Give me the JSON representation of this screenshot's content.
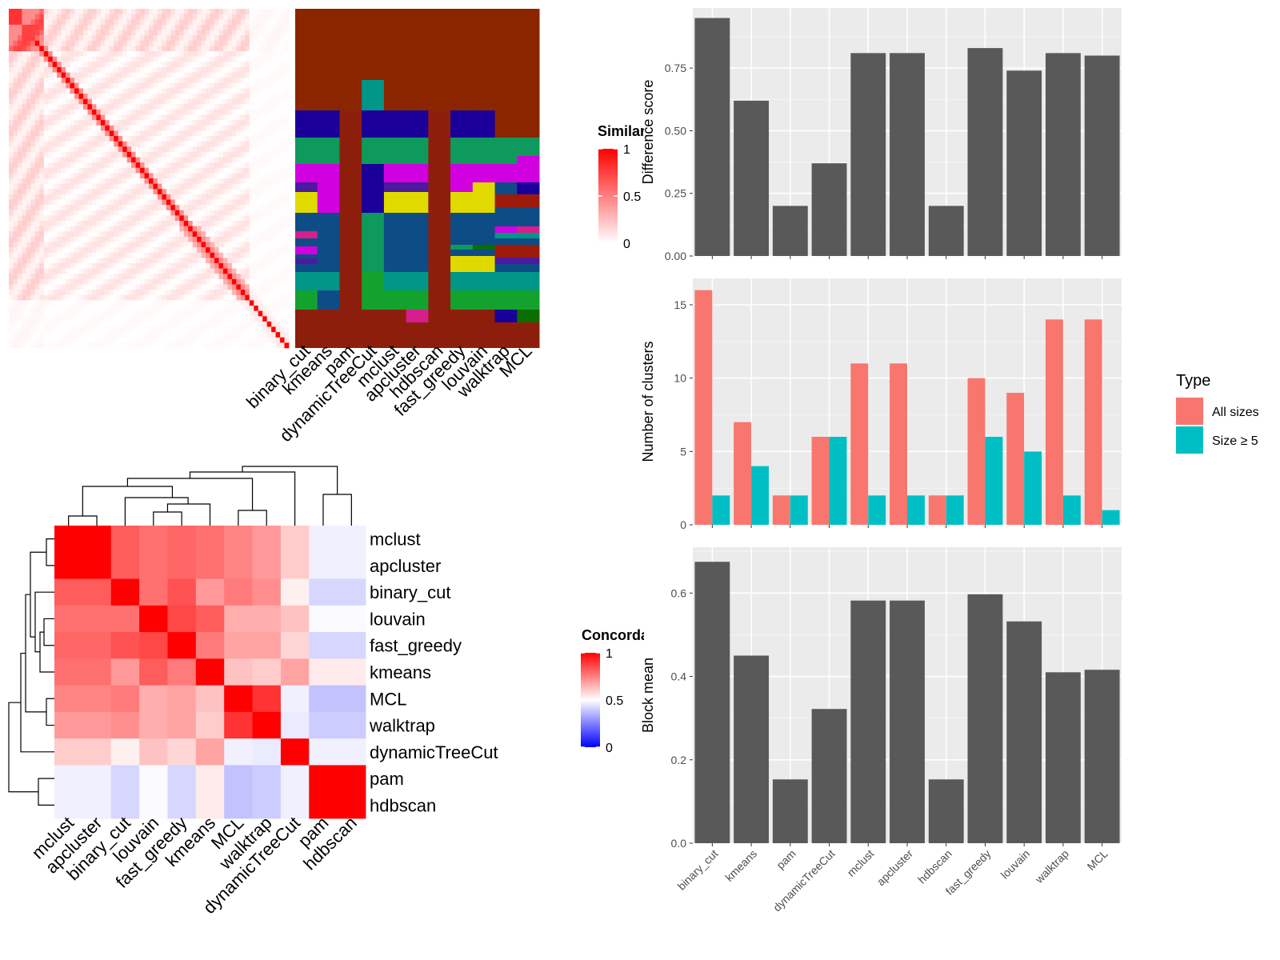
{
  "method_labels": [
    "binary_cut",
    "kmeans",
    "pam",
    "dynamicTreeCut",
    "mclust",
    "apcluster",
    "hdbscan",
    "fast_greedy",
    "louvain",
    "walktrap",
    "MCL"
  ],
  "chart_data": [
    {
      "type": "heatmap",
      "name": "similarity-heatmap",
      "legend_title": "Similarity",
      "legend_ticks": [
        0,
        0.5,
        1
      ],
      "n": 64,
      "colors": {
        "low": "#ffffff",
        "high": "#ff0000"
      },
      "blocks": [
        [
          0,
          2
        ],
        [
          2,
          4
        ],
        [
          4,
          6
        ],
        [
          6,
          8
        ]
      ]
    },
    {
      "type": "heatmap",
      "name": "cluster-assignment-heatmap",
      "columns": [
        "binary_cut",
        "kmeans",
        "pam",
        "dynamicTreeCut",
        "mclust",
        "apcluster",
        "hdbscan",
        "fast_greedy",
        "louvain",
        "walktrap",
        "MCL"
      ],
      "rows": 64,
      "palette": {
        "brown": "#8B2500",
        "navy": "#1A0099",
        "teal": "#009688",
        "green": "#0E9A5C",
        "magenta": "#D000E0",
        "purple": "#4B1AA0",
        "yellow": "#E0DA00",
        "steel": "#0E4C86",
        "pink": "#D81E8C",
        "dgreen": "#14A22E",
        "olive": "#0A6E00",
        "red": "#9E1A0A",
        "maroon": "#8E1E0C"
      }
    },
    {
      "type": "heatmap",
      "name": "concordance-heatmap",
      "legend_title": "Concordance",
      "legend_ticks": [
        0,
        0.5,
        1
      ],
      "rows": [
        "mclust",
        "apcluster",
        "binary_cut",
        "louvain",
        "fast_greedy",
        "kmeans",
        "MCL",
        "walktrap",
        "dynamicTreeCut",
        "pam",
        "hdbscan"
      ],
      "columns": [
        "mclust",
        "apcluster",
        "binary_cut",
        "louvain",
        "fast_greedy",
        "kmeans",
        "MCL",
        "walktrap",
        "dynamicTreeCut",
        "pam",
        "hdbscan"
      ],
      "values": [
        [
          1.0,
          1.0,
          0.82,
          0.78,
          0.8,
          0.78,
          0.74,
          0.7,
          0.6,
          0.47,
          0.47
        ],
        [
          1.0,
          1.0,
          0.82,
          0.78,
          0.8,
          0.78,
          0.74,
          0.7,
          0.6,
          0.47,
          0.47
        ],
        [
          0.82,
          0.82,
          1.0,
          0.78,
          0.84,
          0.7,
          0.76,
          0.72,
          0.53,
          0.42,
          0.42
        ],
        [
          0.78,
          0.78,
          0.78,
          1.0,
          0.86,
          0.82,
          0.66,
          0.66,
          0.62,
          0.49,
          0.49
        ],
        [
          0.8,
          0.8,
          0.84,
          0.86,
          1.0,
          0.76,
          0.68,
          0.68,
          0.58,
          0.42,
          0.42
        ],
        [
          0.78,
          0.78,
          0.7,
          0.82,
          0.76,
          1.0,
          0.62,
          0.6,
          0.68,
          0.54,
          0.54
        ],
        [
          0.74,
          0.74,
          0.76,
          0.66,
          0.68,
          0.62,
          1.0,
          0.9,
          0.47,
          0.38,
          0.38
        ],
        [
          0.7,
          0.7,
          0.72,
          0.66,
          0.68,
          0.6,
          0.9,
          1.0,
          0.46,
          0.4,
          0.4
        ],
        [
          0.6,
          0.6,
          0.53,
          0.62,
          0.58,
          0.68,
          0.47,
          0.46,
          1.0,
          0.47,
          0.47
        ],
        [
          0.47,
          0.47,
          0.42,
          0.49,
          0.42,
          0.54,
          0.38,
          0.4,
          0.47,
          1.0,
          1.0
        ],
        [
          0.47,
          0.47,
          0.42,
          0.49,
          0.42,
          0.54,
          0.38,
          0.4,
          0.47,
          1.0,
          1.0
        ]
      ],
      "colors": {
        "low": "#0000ff",
        "mid": "#ffffff",
        "high": "#ff0000"
      }
    },
    {
      "type": "bar",
      "name": "difference-score",
      "categories": [
        "binary_cut",
        "kmeans",
        "pam",
        "dynamicTreeCut",
        "mclust",
        "apcluster",
        "hdbscan",
        "fast_greedy",
        "louvain",
        "walktrap",
        "MCL"
      ],
      "values": [
        0.95,
        0.62,
        0.2,
        0.37,
        0.81,
        0.81,
        0.2,
        0.83,
        0.74,
        0.81,
        0.8
      ],
      "ylabel": "Difference score",
      "ylim": [
        0,
        0.99
      ],
      "yticks": [
        "0.00",
        "0.25",
        "0.50",
        "0.75"
      ],
      "ytick_values": [
        0,
        0.25,
        0.5,
        0.75
      ],
      "grid": true
    },
    {
      "type": "bar",
      "name": "number-of-clusters",
      "categories": [
        "binary_cut",
        "kmeans",
        "pam",
        "dynamicTreeCut",
        "mclust",
        "apcluster",
        "hdbscan",
        "fast_greedy",
        "louvain",
        "walktrap",
        "MCL"
      ],
      "series": [
        {
          "name": "All sizes",
          "color": "#F8766D",
          "values": [
            16,
            7,
            2,
            6,
            11,
            11,
            2,
            10,
            9,
            14,
            14
          ]
        },
        {
          "name": "Size ≥ 5",
          "color": "#00BFC4",
          "values": [
            2,
            4,
            2,
            6,
            2,
            2,
            2,
            6,
            5,
            2,
            1
          ]
        }
      ],
      "ylabel": "Number of clusters",
      "ylim": [
        0,
        16.8
      ],
      "yticks": [
        "0",
        "5",
        "10",
        "15"
      ],
      "ytick_values": [
        0,
        5,
        10,
        15
      ],
      "legend_title": "Type",
      "legend_position": "right",
      "grid": true
    },
    {
      "type": "bar",
      "name": "block-mean",
      "categories": [
        "binary_cut",
        "kmeans",
        "pam",
        "dynamicTreeCut",
        "mclust",
        "apcluster",
        "hdbscan",
        "fast_greedy",
        "louvain",
        "walktrap",
        "MCL"
      ],
      "values": [
        0.675,
        0.45,
        0.153,
        0.322,
        0.582,
        0.582,
        0.153,
        0.597,
        0.532,
        0.41,
        0.416
      ],
      "ylabel": "Block mean",
      "ylim": [
        0,
        0.71
      ],
      "yticks": [
        "0.0",
        "0.2",
        "0.4",
        "0.6"
      ],
      "ytick_values": [
        0,
        0.2,
        0.4,
        0.6
      ],
      "grid": true
    }
  ]
}
